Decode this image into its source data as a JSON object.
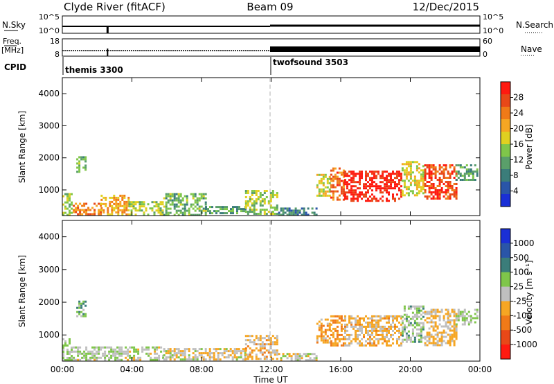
{
  "header": {
    "station": "Clyde River (fitACF)",
    "beam": "Beam 09",
    "date": "12/Dec/2015"
  },
  "aux_panels": {
    "nsky": {
      "left_label": "N.Sky",
      "right_label": "N.Search",
      "left_ticks": [
        "10^5",
        "10^0"
      ],
      "right_ticks": [
        "10^5",
        "10^0"
      ]
    },
    "freq": {
      "left_label_1": "Freq.",
      "left_label_2": "[MHz]",
      "right_label": "Nave",
      "left_ticks": [
        "18",
        "8"
      ],
      "right_ticks": [
        "60",
        "0"
      ]
    },
    "cpid": {
      "label": "CPID",
      "programs": [
        {
          "name": "themis 3300",
          "start": "00:00"
        },
        {
          "name": "twofsound 3503",
          "start": "12:00"
        }
      ]
    }
  },
  "x_axis": {
    "label": "Time UT",
    "ticks": [
      "00:00",
      "04:00",
      "08:00",
      "12:00",
      "16:00",
      "20:00",
      "00:00"
    ],
    "range_hours": [
      0,
      24
    ]
  },
  "chart_data": [
    {
      "type": "heatmap",
      "ylabel": "Slant Range [km]",
      "ylim": [
        200,
        4500
      ],
      "yticks": [
        1000,
        2000,
        3000,
        4000
      ],
      "colorbar": {
        "label": "Power [dB]",
        "ticks": [
          "28",
          "24",
          "20",
          "16",
          "12",
          "8",
          "4"
        ],
        "range": [
          0,
          30
        ],
        "colors": [
          "#1a2fd6",
          "#2a55a8",
          "#3b7d7a",
          "#5a9f6a",
          "#7fc64a",
          "#e0d020",
          "#f6a623",
          "#f07a18",
          "#e84818",
          "#ff1a10"
        ]
      },
      "regions": [
        {
          "t": [
            0.0,
            0.5
          ],
          "r": [
            250,
            900
          ],
          "value": 14
        },
        {
          "t": [
            0.8,
            1.3
          ],
          "r": [
            1550,
            2050
          ],
          "value": 12
        },
        {
          "t": [
            0.6,
            2.2
          ],
          "r": [
            250,
            600
          ],
          "value": 22
        },
        {
          "t": [
            2.2,
            3.8
          ],
          "r": [
            250,
            850
          ],
          "value": 20
        },
        {
          "t": [
            3.8,
            5.8
          ],
          "r": [
            250,
            650
          ],
          "value": 14
        },
        {
          "t": [
            5.8,
            8.2
          ],
          "r": [
            250,
            900
          ],
          "value": 12
        },
        {
          "t": [
            8.2,
            10.5
          ],
          "r": [
            250,
            500
          ],
          "value": 10
        },
        {
          "t": [
            10.5,
            12.4
          ],
          "r": [
            250,
            1000
          ],
          "value": 14
        },
        {
          "t": [
            12.4,
            14.6
          ],
          "r": [
            250,
            450
          ],
          "value": 8
        },
        {
          "t": [
            14.6,
            15.4
          ],
          "r": [
            800,
            1500
          ],
          "value": 16
        },
        {
          "t": [
            15.4,
            16.2
          ],
          "r": [
            700,
            1700
          ],
          "value": 24
        },
        {
          "t": [
            16.2,
            19.5
          ],
          "r": [
            650,
            1600
          ],
          "value": 28
        },
        {
          "t": [
            19.5,
            20.8
          ],
          "r": [
            800,
            1900
          ],
          "value": 16
        },
        {
          "t": [
            20.8,
            22.6
          ],
          "r": [
            700,
            1800
          ],
          "value": 26
        },
        {
          "t": [
            22.6,
            23.8
          ],
          "r": [
            1300,
            1800
          ],
          "value": 10
        }
      ]
    },
    {
      "type": "heatmap",
      "ylabel": "Slant Range [km]",
      "ylim": [
        200,
        4500
      ],
      "yticks": [
        1000,
        2000,
        3000,
        4000
      ],
      "colorbar": {
        "label": "Velocity [m s⁻¹]",
        "ticks": [
          "1000",
          "500",
          "100",
          "25",
          "-25",
          "-100",
          "-500",
          "-1000"
        ],
        "range": [
          -1200,
          1200
        ],
        "colors": [
          "#ff1a10",
          "#e84818",
          "#f07a18",
          "#f6a623",
          "#bfbfbf",
          "#7fc64a",
          "#3b7d7a",
          "#2a55a8",
          "#1a2fd6"
        ]
      },
      "regions": [
        {
          "t": [
            0.0,
            0.5
          ],
          "r": [
            250,
            900
          ],
          "value": 150
        },
        {
          "t": [
            0.8,
            1.3
          ],
          "r": [
            1550,
            2050
          ],
          "value": 300
        },
        {
          "t": [
            0.6,
            5.8
          ],
          "r": [
            250,
            650
          ],
          "value": 80
        },
        {
          "t": [
            5.8,
            10.5
          ],
          "r": [
            250,
            600
          ],
          "value": -60
        },
        {
          "t": [
            10.5,
            12.4
          ],
          "r": [
            250,
            1000
          ],
          "value": -200
        },
        {
          "t": [
            12.4,
            14.6
          ],
          "r": [
            250,
            450
          ],
          "value": 0
        },
        {
          "t": [
            14.6,
            15.4
          ],
          "r": [
            800,
            1500
          ],
          "value": -300
        },
        {
          "t": [
            15.4,
            16.2
          ],
          "r": [
            700,
            1600
          ],
          "value": -400
        },
        {
          "t": [
            16.2,
            19.5
          ],
          "r": [
            650,
            1600
          ],
          "value": -200
        },
        {
          "t": [
            19.5,
            20.8
          ],
          "r": [
            800,
            1900
          ],
          "value": 200
        },
        {
          "t": [
            20.8,
            22.6
          ],
          "r": [
            700,
            1800
          ],
          "value": -150
        },
        {
          "t": [
            22.6,
            23.8
          ],
          "r": [
            1300,
            1800
          ],
          "value": 150
        }
      ]
    }
  ]
}
